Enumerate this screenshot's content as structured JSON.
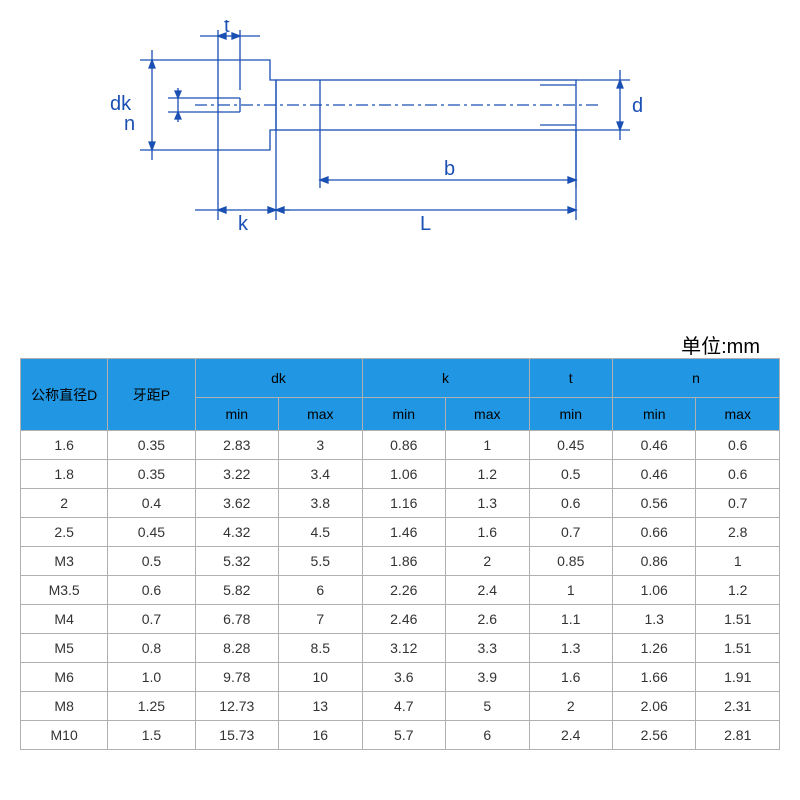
{
  "diagram": {
    "stroke": "#1a4fb3",
    "stroke_width": 1.3,
    "labels": {
      "t": "t",
      "dk": "dk",
      "n": "n",
      "k": "k",
      "L": "L",
      "b": "b",
      "d": "d"
    },
    "label_fontsize": 20,
    "label_color": "#1a4fb3"
  },
  "unit_label": "单位:mm",
  "table": {
    "header_bg": "#2196e3",
    "border_color": "#b0b0b0",
    "columns_top": [
      {
        "label": "公称直径D",
        "rowspan": 2,
        "colspan": 1
      },
      {
        "label": "牙距P",
        "rowspan": 2,
        "colspan": 1
      },
      {
        "label": "dk",
        "rowspan": 1,
        "colspan": 2
      },
      {
        "label": "k",
        "rowspan": 1,
        "colspan": 2
      },
      {
        "label": "t",
        "rowspan": 1,
        "colspan": 1
      },
      {
        "label": "n",
        "rowspan": 1,
        "colspan": 2
      }
    ],
    "columns_sub": [
      "min",
      "max",
      "min",
      "max",
      "min",
      "min",
      "max"
    ],
    "rows": [
      [
        "1.6",
        "0.35",
        "2.83",
        "3",
        "0.86",
        "1",
        "0.45",
        "0.46",
        "0.6"
      ],
      [
        "1.8",
        "0.35",
        "3.22",
        "3.4",
        "1.06",
        "1.2",
        "0.5",
        "0.46",
        "0.6"
      ],
      [
        "2",
        "0.4",
        "3.62",
        "3.8",
        "1.16",
        "1.3",
        "0.6",
        "0.56",
        "0.7"
      ],
      [
        "2.5",
        "0.45",
        "4.32",
        "4.5",
        "1.46",
        "1.6",
        "0.7",
        "0.66",
        "2.8"
      ],
      [
        "M3",
        "0.5",
        "5.32",
        "5.5",
        "1.86",
        "2",
        "0.85",
        "0.86",
        "1"
      ],
      [
        "M3.5",
        "0.6",
        "5.82",
        "6",
        "2.26",
        "2.4",
        "1",
        "1.06",
        "1.2"
      ],
      [
        "M4",
        "0.7",
        "6.78",
        "7",
        "2.46",
        "2.6",
        "1.1",
        "1.3",
        "1.51"
      ],
      [
        "M5",
        "0.8",
        "8.28",
        "8.5",
        "3.12",
        "3.3",
        "1.3",
        "1.26",
        "1.51"
      ],
      [
        "M6",
        "1.0",
        "9.78",
        "10",
        "3.6",
        "3.9",
        "1.6",
        "1.66",
        "1.91"
      ],
      [
        "M8",
        "1.25",
        "12.73",
        "13",
        "4.7",
        "5",
        "2",
        "2.06",
        "2.31"
      ],
      [
        "M10",
        "1.5",
        "15.73",
        "16",
        "5.7",
        "6",
        "2.4",
        "2.56",
        "2.81"
      ]
    ]
  }
}
